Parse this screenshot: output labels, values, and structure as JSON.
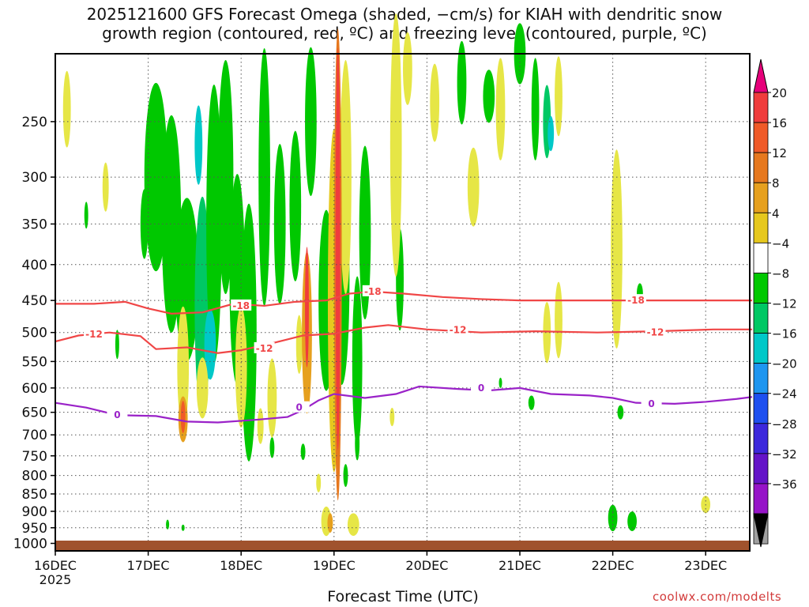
{
  "title_line1": "2025121600 GFS Forecast Omega (shaded, −cm/s) for KIAH with dendritic snow",
  "title_line2": "growth region (contoured, red, ºC) and freezing level (contoured, purple, ºC)",
  "xlabel": "Forecast Time (UTC)",
  "credit": "coolwx.com/modelts",
  "chart_data": {
    "type": "heatmap",
    "variable": "Omega (shaded, −cm/s)",
    "x_ticks": [
      {
        "label": "16DEC",
        "sub": "2025",
        "t": 0
      },
      {
        "label": "17DEC",
        "t": 24
      },
      {
        "label": "18DEC",
        "t": 48
      },
      {
        "label": "19DEC",
        "t": 72
      },
      {
        "label": "20DEC",
        "t": 96
      },
      {
        "label": "21DEC",
        "t": 120
      },
      {
        "label": "22DEC",
        "t": 144
      },
      {
        "label": "23DEC",
        "t": 168
      }
    ],
    "xlim_hours": [
      0,
      180
    ],
    "y_ticks": [
      250,
      300,
      350,
      400,
      450,
      500,
      550,
      600,
      650,
      700,
      750,
      800,
      850,
      900,
      950,
      1000
    ],
    "ylim_hPa": [
      200,
      1025
    ],
    "y_scale": "log",
    "grid": true,
    "colorbar": {
      "labels": [
        "20",
        "16",
        "12",
        "8",
        "4",
        "−4",
        "−8",
        "−12",
        "−16",
        "−20",
        "−24",
        "−28",
        "−32",
        "−36"
      ],
      "colors": [
        "#f03c3c",
        "#f05a28",
        "#e6781e",
        "#e6a01e",
        "#e6c81e",
        "#e6e646",
        "#ffffff",
        "#00c800",
        "#00c864",
        "#00c8c8",
        "#1e96f0",
        "#1e50f0",
        "#3c28dc",
        "#6414c8",
        "#9614c8",
        "#a0a0a0"
      ]
    },
    "contours": [
      {
        "name": "-18",
        "color": "#f04646",
        "points": [
          [
            0,
            455
          ],
          [
            10,
            455
          ],
          [
            18,
            452
          ],
          [
            24,
            462
          ],
          [
            30,
            470
          ],
          [
            38,
            468
          ],
          [
            46,
            455
          ],
          [
            54,
            458
          ],
          [
            62,
            452
          ],
          [
            70,
            450
          ],
          [
            76,
            440
          ],
          [
            82,
            437
          ],
          [
            90,
            440
          ],
          [
            100,
            445
          ],
          [
            110,
            448
          ],
          [
            120,
            450
          ],
          [
            135,
            450
          ],
          [
            150,
            450
          ],
          [
            165,
            450
          ],
          [
            180,
            450
          ]
        ],
        "labels": [
          [
            48,
            458
          ],
          [
            82,
            437
          ],
          [
            150,
            450
          ]
        ]
      },
      {
        "name": "-12",
        "color": "#f04646",
        "points": [
          [
            0,
            515
          ],
          [
            6,
            505
          ],
          [
            14,
            500
          ],
          [
            22,
            506
          ],
          [
            26,
            528
          ],
          [
            34,
            525
          ],
          [
            42,
            535
          ],
          [
            48,
            530
          ],
          [
            56,
            518
          ],
          [
            64,
            505
          ],
          [
            72,
            502
          ],
          [
            80,
            492
          ],
          [
            86,
            488
          ],
          [
            96,
            495
          ],
          [
            110,
            500
          ],
          [
            124,
            498
          ],
          [
            140,
            500
          ],
          [
            155,
            498
          ],
          [
            170,
            495
          ],
          [
            180,
            495
          ]
        ],
        "labels": [
          [
            10,
            503
          ],
          [
            54,
            527
          ],
          [
            104,
            496
          ],
          [
            155,
            500
          ]
        ]
      },
      {
        "name": "0",
        "color": "#9a22c8",
        "points": [
          [
            0,
            630
          ],
          [
            8,
            640
          ],
          [
            16,
            656
          ],
          [
            26,
            658
          ],
          [
            34,
            670
          ],
          [
            42,
            672
          ],
          [
            52,
            666
          ],
          [
            60,
            660
          ],
          [
            64,
            645
          ],
          [
            68,
            625
          ],
          [
            72,
            612
          ],
          [
            80,
            620
          ],
          [
            88,
            612
          ],
          [
            94,
            597
          ],
          [
            104,
            602
          ],
          [
            112,
            605
          ],
          [
            120,
            600
          ],
          [
            128,
            612
          ],
          [
            138,
            615
          ],
          [
            144,
            620
          ],
          [
            150,
            630
          ],
          [
            160,
            632
          ],
          [
            168,
            628
          ],
          [
            176,
            622
          ],
          [
            180,
            618
          ]
        ],
        "labels": [
          [
            16,
            656
          ],
          [
            63,
            640
          ],
          [
            110,
            600
          ],
          [
            154,
            632
          ]
        ]
      }
    ]
  }
}
